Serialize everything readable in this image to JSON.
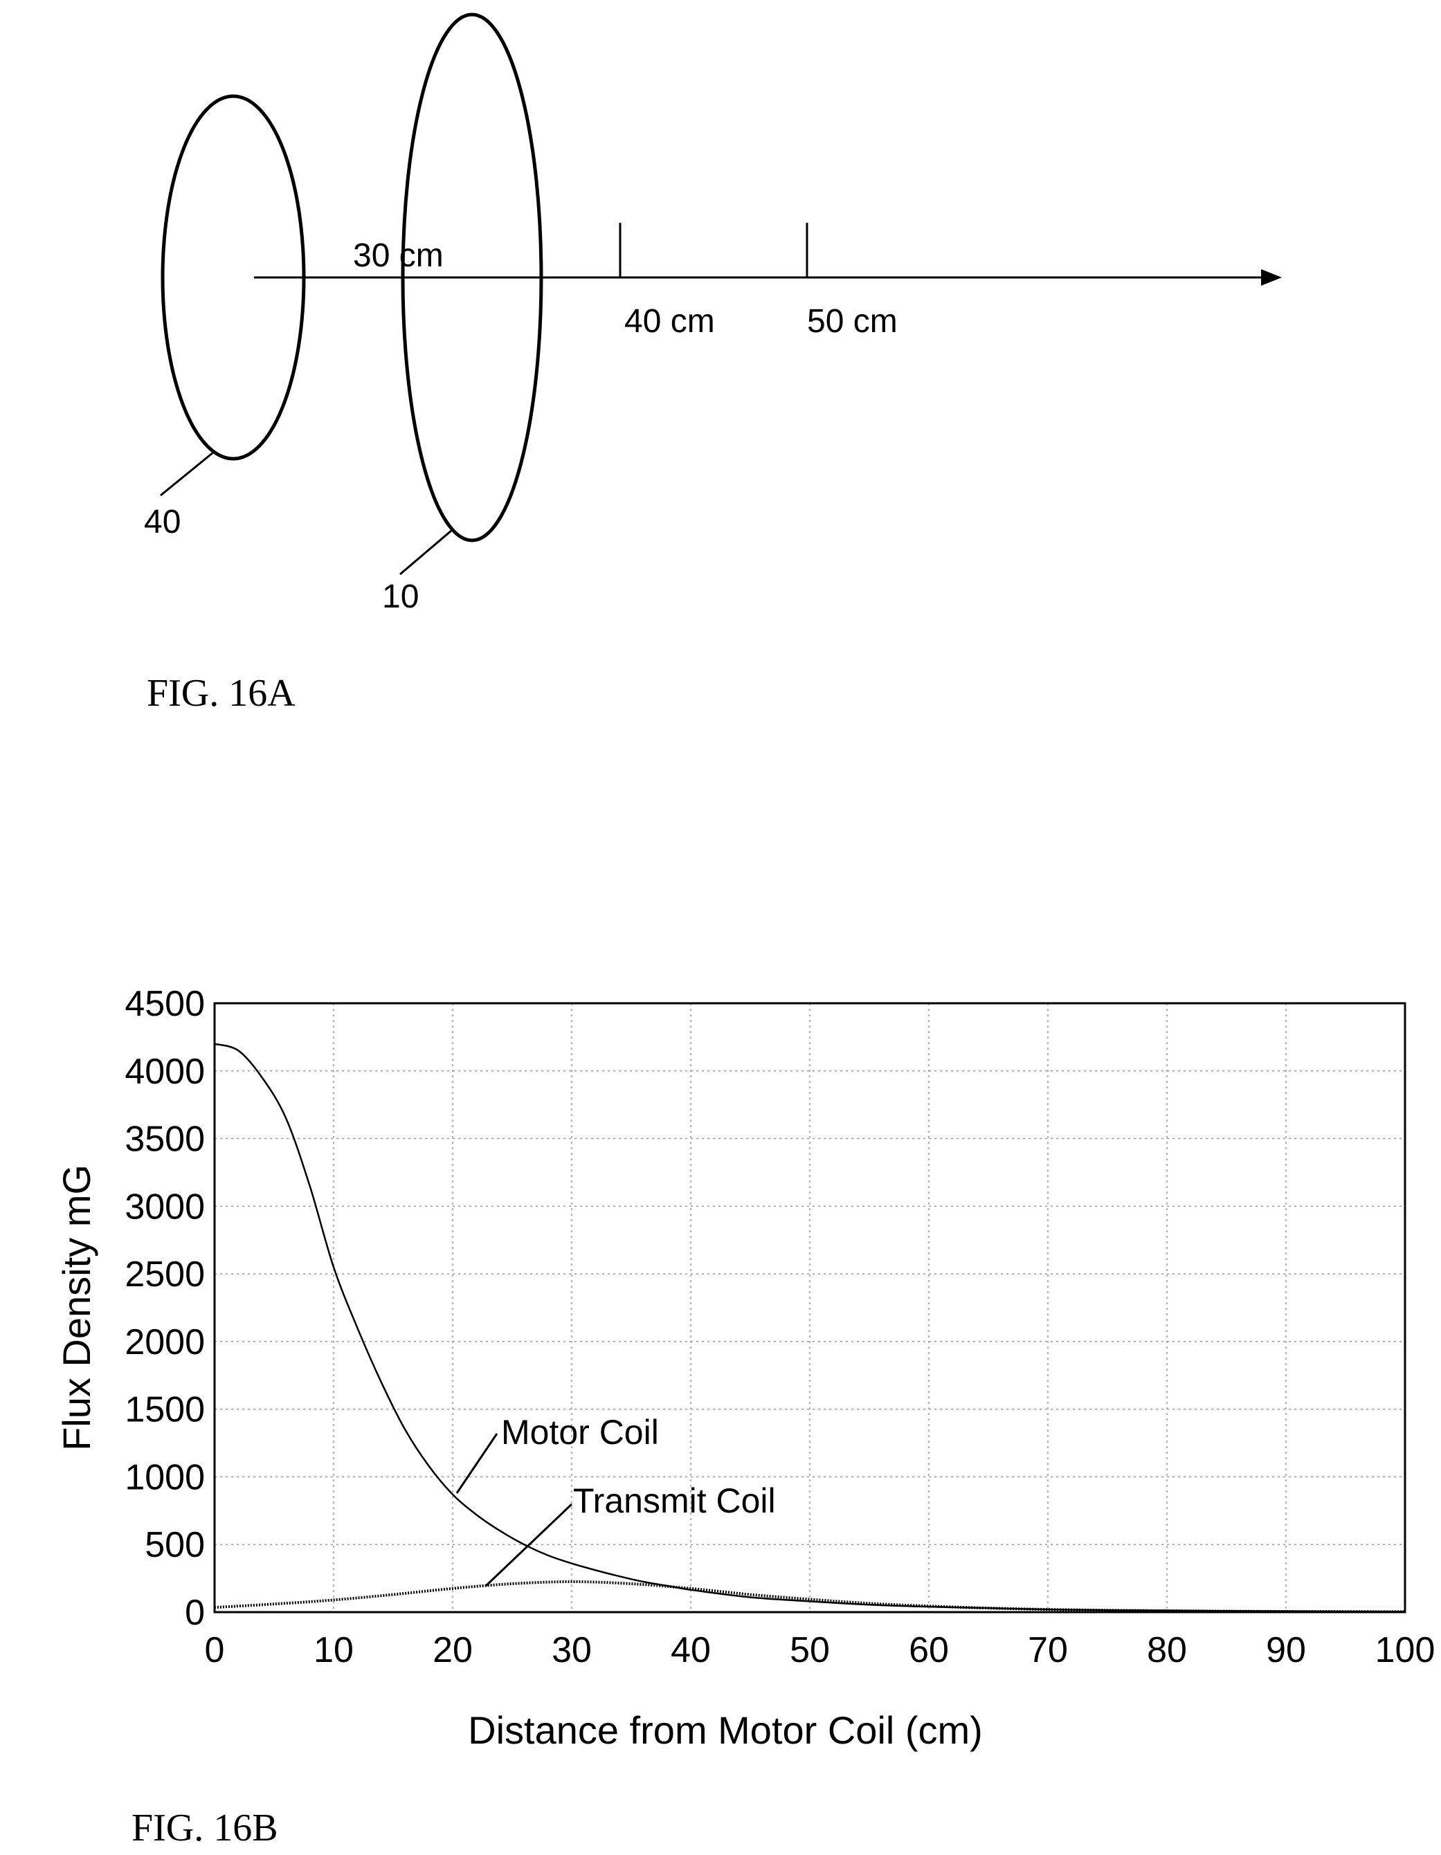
{
  "fig16a": {
    "caption": "FIG. 16A",
    "labels": {
      "d30": "30 cm",
      "d40": "40 cm",
      "d50": "50 cm",
      "ref_coil_small": "40",
      "ref_coil_large": "10"
    }
  },
  "fig16b": {
    "caption": "FIG. 16B"
  },
  "chart_data": {
    "type": "line",
    "xlabel": "Distance from Motor Coil (cm)",
    "ylabel": "Flux Density mG",
    "xlim": [
      0,
      100
    ],
    "ylim": [
      0,
      4500
    ],
    "xticks": [
      0,
      10,
      20,
      30,
      40,
      50,
      60,
      70,
      80,
      90,
      100
    ],
    "yticks": [
      0,
      500,
      1000,
      1500,
      2000,
      2500,
      3000,
      3500,
      4000,
      4500
    ],
    "grid": true,
    "series": [
      {
        "name": "Motor Coil",
        "x": [
          0,
          2,
          4,
          6,
          8,
          10,
          12,
          14,
          16,
          18,
          20,
          22,
          24,
          26,
          28,
          30,
          32,
          34,
          36,
          38,
          40,
          45,
          50,
          55,
          60,
          65,
          70,
          75,
          80,
          85,
          90,
          95,
          100
        ],
        "y": [
          4200,
          4150,
          3950,
          3650,
          3150,
          2550,
          2100,
          1700,
          1350,
          1080,
          870,
          720,
          600,
          500,
          420,
          360,
          310,
          265,
          225,
          195,
          165,
          110,
          80,
          55,
          40,
          30,
          20,
          15,
          12,
          9,
          7,
          5,
          4
        ]
      },
      {
        "name": "Transmit Coil",
        "x": [
          0,
          5,
          10,
          15,
          20,
          25,
          30,
          35,
          40,
          45,
          50,
          55,
          60,
          65,
          70,
          75,
          80,
          85,
          90,
          95,
          100
        ],
        "y": [
          35,
          60,
          90,
          130,
          175,
          210,
          225,
          210,
          175,
          130,
          95,
          65,
          45,
          30,
          20,
          14,
          10,
          7,
          5,
          4,
          3
        ]
      }
    ]
  }
}
